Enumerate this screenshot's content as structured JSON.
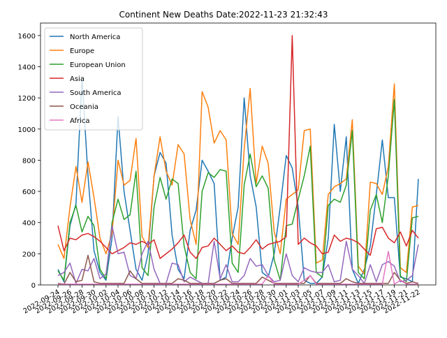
{
  "chart_data": {
    "type": "line",
    "title": "Continent New Deaths Date:2022-11-23 21:32:43",
    "xlabel": "",
    "ylabel": "",
    "ylim": [
      0,
      1680
    ],
    "y_ticks": [
      0,
      200,
      400,
      600,
      800,
      1000,
      1200,
      1400,
      1600
    ],
    "grid": false,
    "legend_position": "upper left",
    "x_tick_labels": [
      "2022-09-24",
      "2022-09-26",
      "2022-09-28",
      "2022-09-30",
      "2022-10-02",
      "2022-10-04",
      "2022-10-06",
      "2022-10-08",
      "2022-10-10",
      "2022-10-12",
      "2022-10-14",
      "2022-10-16",
      "2022-10-18",
      "2022-10-20",
      "2022-10-22",
      "2022-10-24",
      "2022-10-26",
      "2022-10-28",
      "2022-10-30",
      "2022-11-01",
      "2022-11-03",
      "2022-11-05",
      "2022-11-07",
      "2022-11-09",
      "2022-11-11",
      "2022-11-13",
      "2022-11-15",
      "2022-11-17",
      "2022-11-19",
      "2022-11-21",
      "2022-11-22"
    ],
    "series": [
      {
        "name": "North America",
        "color": "#1f77b4",
        "values": [
          100,
          20,
          380,
          520,
          1330,
          700,
          220,
          80,
          30,
          300,
          1080,
          600,
          350,
          100,
          30,
          200,
          700,
          850,
          780,
          320,
          100,
          40,
          350,
          480,
          800,
          730,
          650,
          30,
          50,
          300,
          500,
          1200,
          700,
          500,
          80,
          50,
          200,
          500,
          830,
          750,
          500,
          30,
          10,
          10,
          50,
          300,
          1030,
          600,
          950,
          100,
          10,
          100,
          250,
          580,
          930,
          560,
          560,
          50,
          40,
          20,
          680
        ]
      },
      {
        "name": "Europe",
        "color": "#ff7f0e",
        "values": [
          260,
          170,
          500,
          760,
          530,
          790,
          560,
          300,
          200,
          330,
          800,
          640,
          670,
          940,
          310,
          240,
          700,
          950,
          730,
          640,
          900,
          840,
          420,
          260,
          1240,
          1140,
          910,
          990,
          930,
          330,
          260,
          870,
          1260,
          650,
          890,
          780,
          340,
          200,
          550,
          580,
          610,
          990,
          1000,
          140,
          160,
          580,
          630,
          650,
          680,
          1060,
          120,
          70,
          660,
          650,
          580,
          760,
          1290,
          110,
          80,
          500,
          510
        ]
      },
      {
        "name": "European Union",
        "color": "#2ca02c",
        "values": [
          90,
          30,
          400,
          510,
          340,
          440,
          380,
          100,
          40,
          400,
          550,
          420,
          450,
          730,
          110,
          60,
          500,
          690,
          550,
          680,
          650,
          250,
          80,
          40,
          600,
          720,
          690,
          740,
          730,
          140,
          80,
          640,
          840,
          630,
          700,
          620,
          160,
          30,
          380,
          390,
          550,
          700,
          890,
          80,
          50,
          510,
          550,
          530,
          640,
          990,
          80,
          40,
          480,
          580,
          400,
          700,
          1190,
          60,
          20,
          430,
          440
        ]
      },
      {
        "name": "Asia",
        "color": "#d62728",
        "values": [
          380,
          220,
          300,
          290,
          320,
          330,
          310,
          280,
          240,
          200,
          220,
          240,
          270,
          260,
          280,
          260,
          290,
          170,
          200,
          230,
          270,
          320,
          210,
          170,
          240,
          250,
          300,
          260,
          220,
          250,
          210,
          200,
          240,
          290,
          230,
          260,
          270,
          280,
          310,
          1600,
          260,
          300,
          270,
          250,
          200,
          210,
          320,
          280,
          300,
          290,
          270,
          230,
          190,
          360,
          370,
          300,
          270,
          340,
          250,
          350,
          300
        ]
      },
      {
        "name": "South America",
        "color": "#9467bd",
        "values": [
          60,
          80,
          140,
          10,
          100,
          90,
          170,
          40,
          70,
          380,
          200,
          210,
          60,
          40,
          200,
          280,
          100,
          10,
          10,
          140,
          130,
          20,
          50,
          30,
          10,
          10,
          280,
          40,
          130,
          20,
          20,
          60,
          170,
          120,
          130,
          60,
          20,
          30,
          200,
          60,
          20,
          110,
          90,
          80,
          80,
          130,
          20,
          30,
          280,
          100,
          60,
          10,
          130,
          20,
          130,
          150,
          120,
          20,
          30,
          60,
          260
        ]
      },
      {
        "name": "Oceania",
        "color": "#8c564b",
        "values": [
          10,
          5,
          80,
          20,
          30,
          190,
          20,
          10,
          10,
          10,
          10,
          10,
          90,
          40,
          10,
          10,
          10,
          10,
          10,
          10,
          40,
          30,
          10,
          10,
          10,
          10,
          10,
          30,
          40,
          10,
          10,
          10,
          10,
          10,
          50,
          30,
          10,
          10,
          10,
          10,
          10,
          10,
          60,
          10,
          10,
          10,
          10,
          10,
          40,
          20,
          10,
          10,
          10,
          10,
          10,
          10,
          80,
          30,
          10,
          20,
          10
        ]
      },
      {
        "name": "Africa",
        "color": "#e377c2",
        "values": [
          5,
          5,
          5,
          5,
          5,
          5,
          5,
          5,
          5,
          5,
          5,
          5,
          5,
          5,
          5,
          5,
          5,
          5,
          5,
          5,
          5,
          5,
          5,
          5,
          5,
          5,
          5,
          5,
          5,
          5,
          5,
          5,
          5,
          5,
          5,
          60,
          5,
          5,
          5,
          5,
          5,
          30,
          60,
          5,
          5,
          5,
          5,
          5,
          5,
          5,
          5,
          5,
          5,
          5,
          5,
          215,
          5,
          30,
          5,
          5,
          5
        ]
      }
    ]
  }
}
